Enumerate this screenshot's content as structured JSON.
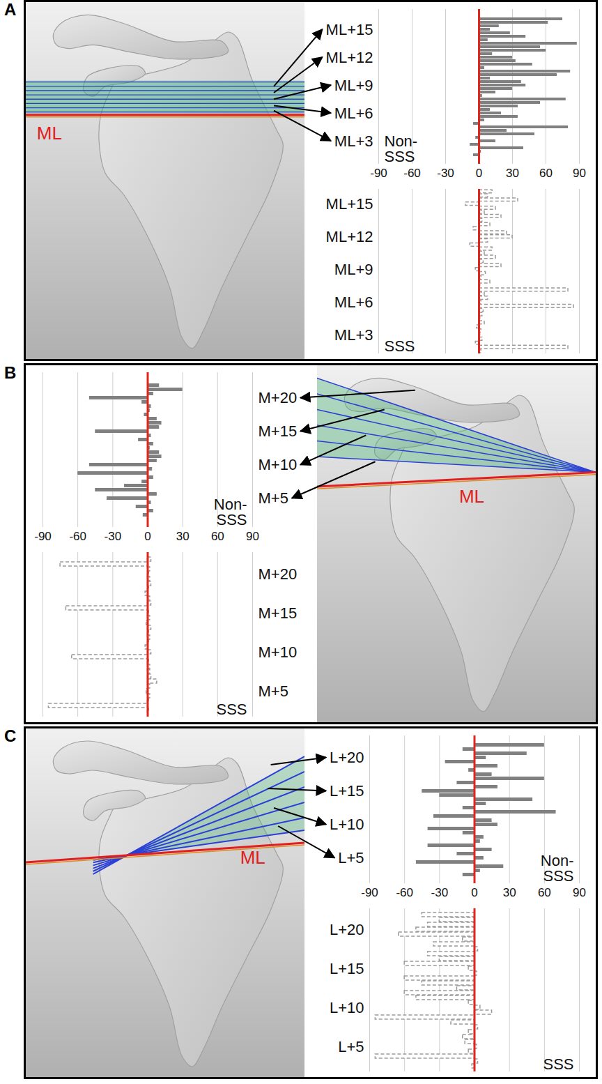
{
  "panels": [
    {
      "letter": "A",
      "line_label": "ML"
    },
    {
      "letter": "B",
      "line_label": "ML"
    },
    {
      "letter": "C",
      "line_label": "ML"
    }
  ],
  "chart_data": [
    {
      "type": "bar",
      "orientation": "horizontal",
      "title": "Non-SSS",
      "categories": [
        null,
        null,
        null,
        "ML+15",
        null,
        null,
        null,
        null,
        null,
        null,
        null,
        "ML+12",
        null,
        null,
        null,
        null,
        null,
        null,
        null,
        "ML+9",
        null,
        null,
        null,
        null,
        null,
        null,
        null,
        "ML+6",
        null,
        null,
        null,
        null,
        null,
        null,
        null,
        "ML+3",
        null,
        null,
        null,
        null
      ],
      "values": [
        75,
        62,
        18,
        10,
        28,
        42,
        8,
        88,
        55,
        60,
        12,
        30,
        33,
        48,
        5,
        82,
        70,
        10,
        38,
        42,
        30,
        15,
        3,
        78,
        55,
        35,
        10,
        20,
        35,
        5,
        -5,
        80,
        25,
        50,
        -3,
        15,
        -8,
        40,
        2,
        -5
      ],
      "color": "#808080",
      "xlim": [
        -90,
        90
      ],
      "xticks": [
        -90,
        -60,
        -30,
        0,
        30,
        60,
        90
      ],
      "grid": true,
      "reference_x": 0
    },
    {
      "type": "bar",
      "orientation": "horizontal",
      "title": "SSS",
      "categories": [
        null,
        null,
        null,
        "ML+15",
        null,
        null,
        null,
        null,
        null,
        null,
        null,
        "ML+12",
        null,
        null,
        null,
        null,
        null,
        null,
        null,
        "ML+9",
        null,
        null,
        null,
        null,
        null,
        null,
        null,
        "ML+6",
        null,
        null,
        null,
        null,
        null,
        null,
        null,
        "ML+3",
        null,
        null,
        null,
        null
      ],
      "values": [
        12,
        8,
        35,
        -12,
        15,
        5,
        20,
        3,
        10,
        -5,
        25,
        30,
        8,
        -8,
        12,
        5,
        15,
        4,
        20,
        -3,
        6,
        2,
        10,
        1,
        80,
        5,
        8,
        2,
        85,
        4,
        3,
        1,
        5,
        -2,
        2,
        1,
        3,
        -3,
        80,
        2
      ],
      "color": "#9a9a9a",
      "line_style": "dashed",
      "tick_labels": "y",
      "xlim": [
        -90,
        90
      ],
      "xticks": [
        -90,
        -60,
        -30,
        0,
        30,
        60,
        90
      ],
      "grid": true,
      "reference_x": 0
    },
    {
      "type": "bar",
      "orientation": "horizontal",
      "title": "Non-SSS",
      "categories": [
        null,
        null,
        null,
        "M+20",
        null,
        null,
        null,
        null,
        null,
        null,
        null,
        "M+15",
        null,
        null,
        null,
        null,
        null,
        null,
        null,
        "M+10",
        null,
        null,
        null,
        null,
        null,
        null,
        null,
        "M+5",
        null,
        null,
        null,
        null
      ],
      "values": [
        10,
        30,
        5,
        -50,
        -5,
        3,
        2,
        -3,
        8,
        12,
        10,
        -45,
        3,
        -8,
        5,
        2,
        10,
        12,
        8,
        -50,
        4,
        -60,
        5,
        -5,
        -20,
        -45,
        8,
        -35,
        3,
        -10,
        5,
        -4
      ],
      "color": "#808080",
      "xlim": [
        -90,
        90
      ],
      "xticks": [
        -90,
        -60,
        -30,
        0,
        30,
        60,
        90
      ],
      "grid": true,
      "reference_x": 0
    },
    {
      "type": "bar",
      "orientation": "horizontal",
      "title": "SSS",
      "categories": [
        null,
        null,
        null,
        "M+20",
        null,
        null,
        null,
        null,
        null,
        null,
        null,
        "M+15",
        null,
        null,
        null,
        null,
        null,
        null,
        null,
        "M+10",
        null,
        null,
        null,
        null,
        null,
        null,
        null,
        "M+5",
        null,
        null,
        null,
        null
      ],
      "values": [
        3,
        -75,
        2,
        1,
        2,
        3,
        1,
        -2,
        2,
        3,
        -70,
        1,
        2,
        -1,
        3,
        1,
        2,
        1,
        -2,
        3,
        -65,
        1,
        2,
        2,
        3,
        8,
        2,
        -1,
        2,
        1,
        -85,
        1
      ],
      "color": "#9a9a9a",
      "line_style": "dashed",
      "tick_labels": "y",
      "xlim": [
        -90,
        90
      ],
      "xticks": [
        -90,
        -60,
        -30,
        0,
        30,
        60,
        90
      ],
      "grid": true,
      "reference_x": 0
    },
    {
      "type": "bar",
      "orientation": "horizontal",
      "title": "Non-SSS",
      "categories": [
        null,
        null,
        null,
        "L+20",
        null,
        null,
        null,
        null,
        null,
        null,
        null,
        "L+15",
        null,
        null,
        null,
        null,
        null,
        null,
        null,
        "L+10",
        null,
        null,
        null,
        null,
        null,
        null,
        null,
        "L+5",
        null,
        null,
        null,
        null
      ],
      "values": [
        60,
        -10,
        45,
        10,
        -25,
        20,
        -5,
        15,
        60,
        -15,
        20,
        -45,
        -30,
        50,
        10,
        -10,
        70,
        -35,
        15,
        20,
        -40,
        -10,
        8,
        5,
        -40,
        15,
        -15,
        8,
        -50,
        25,
        5,
        -10
      ],
      "color": "#808080",
      "xlim": [
        -90,
        90
      ],
      "xticks": [
        -90,
        -60,
        -30,
        0,
        30,
        60,
        90
      ],
      "grid": true,
      "reference_x": 0
    },
    {
      "type": "bar",
      "orientation": "horizontal",
      "title": "SSS",
      "categories": [
        null,
        null,
        null,
        "L+20",
        null,
        null,
        null,
        null,
        null,
        null,
        null,
        "L+15",
        null,
        null,
        null,
        null,
        null,
        null,
        null,
        "L+10",
        null,
        null,
        null,
        null,
        null,
        null,
        null,
        "L+5",
        null,
        null,
        null,
        null
      ],
      "values": [
        -45,
        -30,
        -40,
        -50,
        -65,
        -10,
        -35,
        3,
        -40,
        -30,
        -60,
        -5,
        2,
        -60,
        -45,
        -15,
        -60,
        -50,
        -5,
        5,
        15,
        -85,
        -20,
        3,
        -5,
        -10,
        -8,
        2,
        -5,
        -85,
        3,
        -2
      ],
      "color": "#9a9a9a",
      "line_style": "dashed",
      "tick_labels": "y",
      "xlim": [
        -90,
        90
      ],
      "xticks": [
        -90,
        -60,
        -30,
        0,
        30,
        60,
        90
      ],
      "grid": true,
      "reference_x": 0
    }
  ]
}
